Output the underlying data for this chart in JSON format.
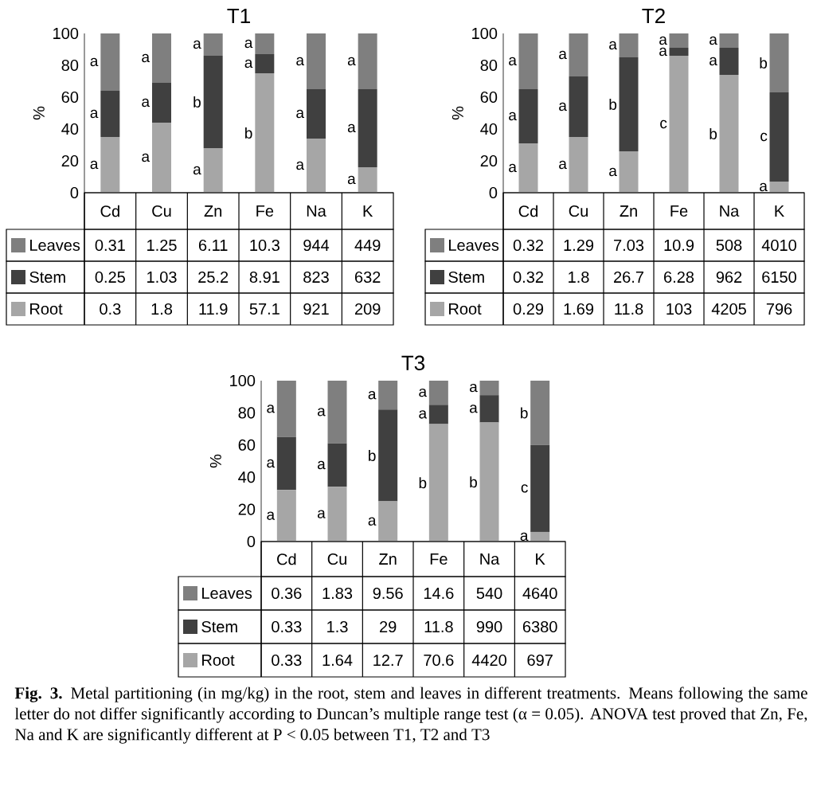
{
  "chart_data": [
    {
      "type": "bar",
      "title": "T1",
      "ylabel": "%",
      "categories": [
        "Cd",
        "Cu",
        "Zn",
        "Fe",
        "Na",
        "K"
      ],
      "ylim": [
        0,
        100
      ],
      "yticks": [
        0,
        20,
        40,
        60,
        80,
        100
      ],
      "stacked": true,
      "legend": "bottom left",
      "series": [
        {
          "name": "Root",
          "color": "#a6a6a6",
          "values": [
            35,
            44,
            28,
            75,
            34,
            16
          ]
        },
        {
          "name": "Stem",
          "color": "#404040",
          "values": [
            29,
            25,
            58,
            12,
            31,
            49
          ]
        },
        {
          "name": "Leaves",
          "color": "#7f7f7f",
          "values": [
            36,
            31,
            14,
            13,
            35,
            35
          ]
        }
      ],
      "annotations": [
        "a",
        "a",
        "a",
        "a",
        "a",
        "a",
        "a",
        "b",
        "a",
        "a",
        "a",
        "b",
        "a",
        "a",
        "a",
        "a",
        "a",
        "a",
        "0.31",
        "1.25",
        "6.11",
        "10.3",
        "944",
        "449",
        "0.25",
        "1.03",
        "25.2",
        "8.91",
        "823",
        "632",
        "0.3",
        "1.8",
        "11.9",
        "57.1",
        "921",
        "209"
      ]
    },
    {
      "type": "bar",
      "title": "T2",
      "ylabel": "%",
      "categories": [
        "Cd",
        "Cu",
        "Zn",
        "Fe",
        "Na",
        "K"
      ],
      "ylim": [
        0,
        100
      ],
      "yticks": [
        0,
        20,
        40,
        60,
        80,
        100
      ],
      "stacked": true,
      "legend": "bottom left",
      "series": [
        {
          "name": "Root",
          "color": "#a6a6a6",
          "values": [
            31,
            35,
            26,
            86,
            74,
            7
          ]
        },
        {
          "name": "Stem",
          "color": "#404040",
          "values": [
            34,
            38,
            59,
            5,
            17,
            56
          ]
        },
        {
          "name": "Leaves",
          "color": "#7f7f7f",
          "values": [
            35,
            27,
            15,
            9,
            9,
            37
          ]
        }
      ],
      "annotations": [
        "a",
        "a",
        "a",
        "a",
        "a",
        "a",
        "a",
        "b",
        "a",
        "a",
        "a",
        "c",
        "a",
        "a",
        "b",
        "b",
        "c",
        "a",
        "0.32",
        "1.29",
        "7.03",
        "10.9",
        "508",
        "4010",
        "0.32",
        "1.8",
        "26.7",
        "6.28",
        "962",
        "6150",
        "0.29",
        "1.69",
        "11.8",
        "103",
        "4205",
        "796"
      ]
    },
    {
      "type": "bar",
      "title": "T3",
      "ylabel": "%",
      "categories": [
        "Cd",
        "Cu",
        "Zn",
        "Fe",
        "Na",
        "K"
      ],
      "ylim": [
        0,
        100
      ],
      "yticks": [
        0,
        20,
        40,
        60,
        80,
        100
      ],
      "stacked": true,
      "legend": "bottom left",
      "series": [
        {
          "name": "Root",
          "color": "#a6a6a6",
          "values": [
            32,
            34,
            25,
            73,
            74,
            6
          ]
        },
        {
          "name": "Stem",
          "color": "#404040",
          "values": [
            33,
            27,
            57,
            12,
            17,
            54
          ]
        },
        {
          "name": "Leaves",
          "color": "#7f7f7f",
          "values": [
            35,
            39,
            18,
            15,
            9,
            40
          ]
        }
      ],
      "annotations": [
        "a",
        "a",
        "a",
        "a",
        "a",
        "a",
        "a",
        "b",
        "a",
        "a",
        "a",
        "b",
        "a",
        "a",
        "b",
        "b",
        "c",
        "a",
        "0.36",
        "1.83",
        "9.56",
        "14.6",
        "540",
        "4640",
        "0.33",
        "1.3",
        "29",
        "11.8",
        "990",
        "6380",
        "0.33",
        "1.64",
        "12.7",
        "70.6",
        "4420",
        "697",
        "**Fig. 3.** Metal partitioning (in mg/kg) in the root, stem and leaves in different treatments. Means following the same letter do not differ significantly according to Duncan’s multiple range test (α = 0.05). ANOVA test proved that Zn, Fe, Na and K are significantly different at P < 0.05 between T1, T2 and T3"
      ]
    }
  ]
}
